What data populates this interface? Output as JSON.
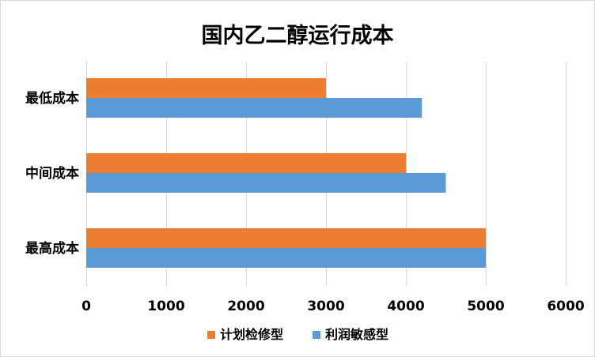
{
  "chart_data": {
    "type": "bar",
    "orientation": "horizontal",
    "title": "国内乙二醇运行成本",
    "xlabel": "",
    "ylabel": "",
    "categories": [
      "最低成本",
      "中间成本",
      "最高成本"
    ],
    "series": [
      {
        "name": "计划检修型",
        "values": [
          3000,
          4000,
          5000
        ],
        "color": "#ed7d31"
      },
      {
        "name": "利润敏感型",
        "values": [
          4200,
          4500,
          5000
        ],
        "color": "#5b9bd5"
      }
    ],
    "xlim": [
      0,
      6000
    ],
    "xticks": [
      0,
      1000,
      2000,
      3000,
      4000,
      5000,
      6000
    ],
    "grid": true,
    "legend_position": "bottom",
    "gridline_color": "#d9d9d9"
  }
}
